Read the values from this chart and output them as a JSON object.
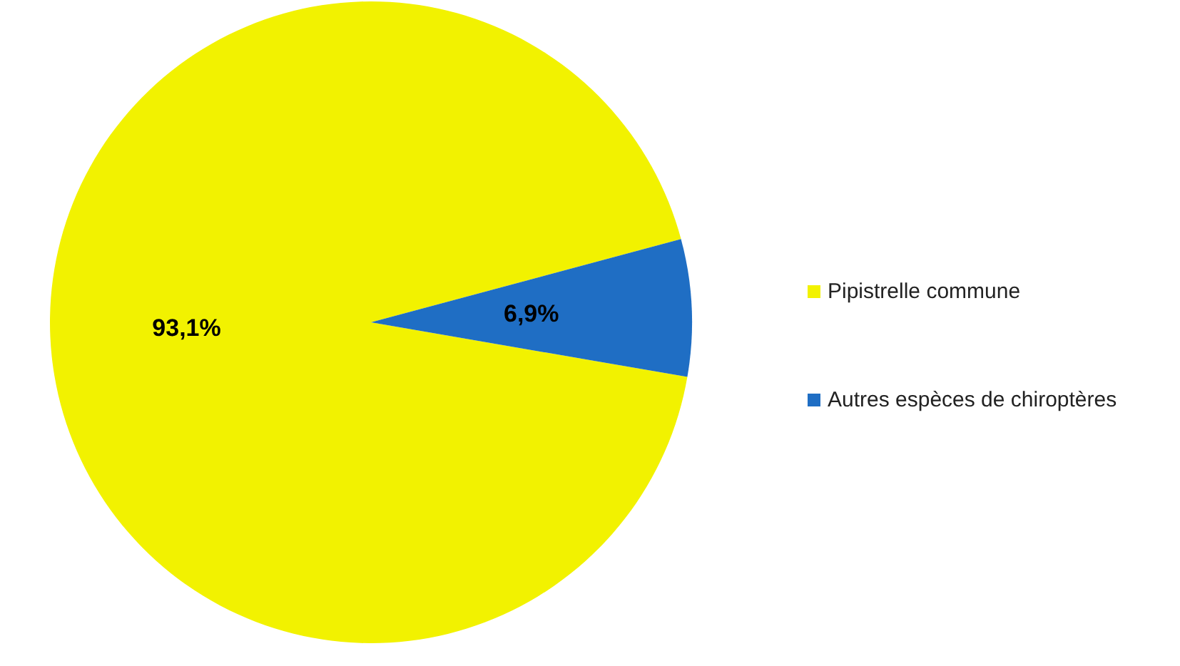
{
  "chart_data": {
    "type": "pie",
    "categories": [
      "Pipistrelle commune",
      "Autres espèces de chiroptères"
    ],
    "values": [
      93.1,
      6.9
    ],
    "colors": [
      "#f2f200",
      "#1f6ec4"
    ],
    "value_labels": [
      "93,1%",
      "6,9%"
    ],
    "legend": "right"
  }
}
